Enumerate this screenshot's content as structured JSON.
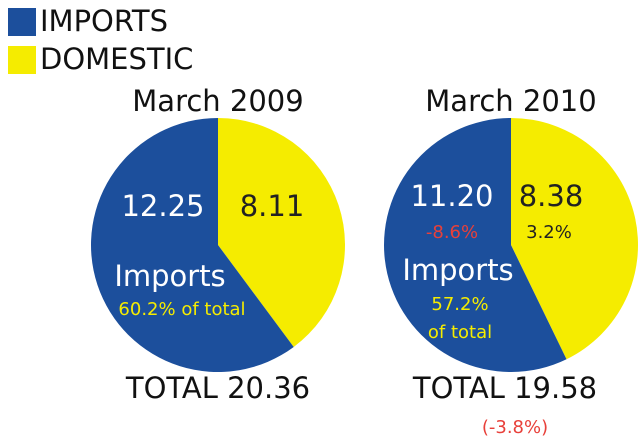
{
  "legend": {
    "labels": [
      "IMPORTS",
      "DOMESTIC"
    ],
    "colors": [
      "#1c4f9c",
      "#f5ec00"
    ]
  },
  "chart_data": [
    {
      "type": "pie",
      "title": "March 2009",
      "values": [
        12.25,
        8.11
      ],
      "value_labels": [
        "12.25",
        "8.11"
      ],
      "annotations": [
        {
          "text": "Imports",
          "color": "#ffffff"
        },
        {
          "text": "60.2% of total",
          "color": "#f5ec00"
        }
      ],
      "total": "TOTAL 20.36"
    },
    {
      "type": "pie",
      "title": "March 2010",
      "values": [
        11.2,
        8.38
      ],
      "value_labels": [
        "11.20",
        "8.38"
      ],
      "annotations": [
        {
          "text": "-8.6%",
          "color": "#e8403a"
        },
        {
          "text": "3.2%",
          "color": "#222222"
        },
        {
          "text": "Imports",
          "color": "#ffffff"
        },
        {
          "text": "57.2%",
          "color": "#f5ec00"
        },
        {
          "text": "of total",
          "color": "#f5ec00"
        },
        {
          "text": "(-3.8%)",
          "color": "#e8403a"
        }
      ],
      "total": "TOTAL 19.58"
    }
  ]
}
